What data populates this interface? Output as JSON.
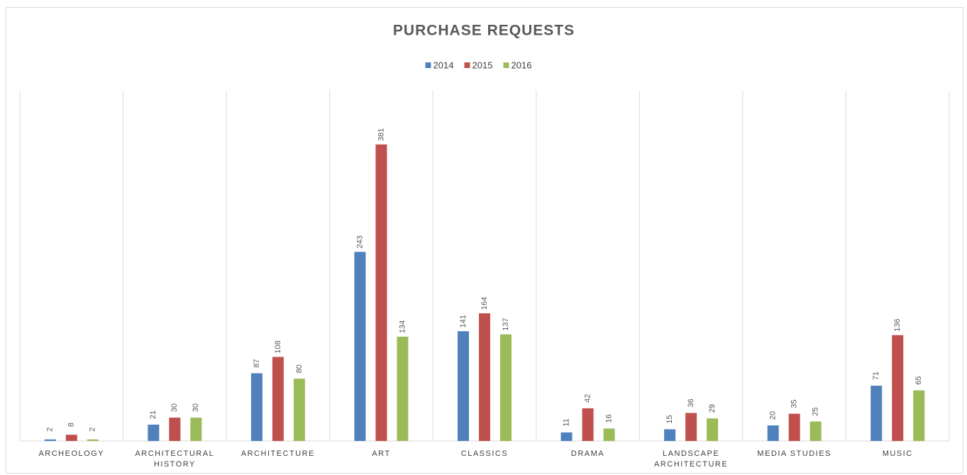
{
  "chart_data": {
    "type": "bar",
    "title": "PURCHASE REQUESTS",
    "categories": [
      "ARCHEOLOGY",
      "ARCHITECTURAL HISTORY",
      "ARCHITECTURE",
      "ART",
      "CLASSICS",
      "DRAMA",
      "LANDSCAPE ARCHITECTURE",
      "MEDIA STUDIES",
      "MUSIC"
    ],
    "series": [
      {
        "name": "2014",
        "color": "#4f81bd",
        "values": [
          2,
          21,
          87,
          243,
          141,
          11,
          15,
          20,
          71
        ]
      },
      {
        "name": "2015",
        "color": "#c0504d",
        "values": [
          8,
          30,
          108,
          381,
          164,
          42,
          36,
          35,
          136
        ]
      },
      {
        "name": "2016",
        "color": "#9bbb59",
        "values": [
          2,
          30,
          80,
          134,
          137,
          16,
          29,
          25,
          65
        ]
      }
    ],
    "ylim": [
      0,
      450
    ],
    "legend": "top"
  }
}
